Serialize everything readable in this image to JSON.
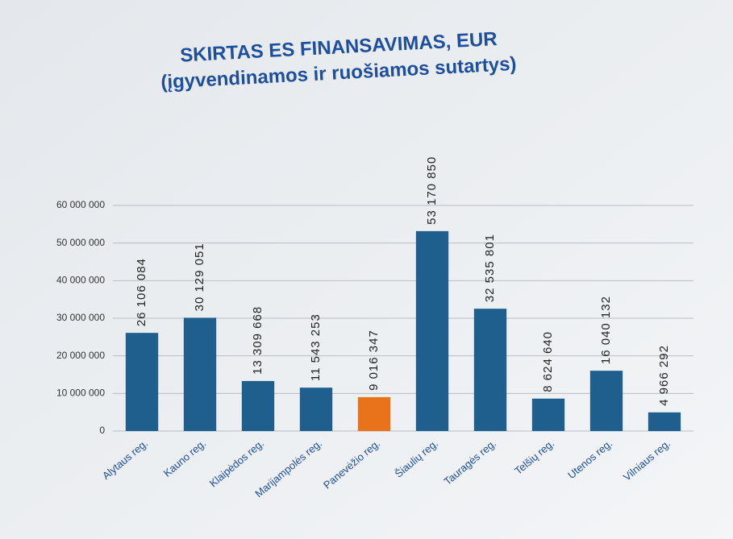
{
  "chart_data": {
    "type": "bar",
    "title": "SKIRTAS ES FINANSAVIMAS, EUR",
    "subtitle": "(įgyvendinamos ir ruošiamos sutartys)",
    "categories": [
      "Alytaus reg.",
      "Kauno reg.",
      "Klaipėdos reg.",
      "Marijampolės reg.",
      "Panevėžio reg.",
      "Šiaulių reg.",
      "Tauragės reg.",
      "Telšių reg.",
      "Utenos reg.",
      "Vilniaus reg."
    ],
    "values": [
      26106084,
      30129051,
      13309668,
      11543253,
      9016347,
      53170850,
      32535801,
      8624640,
      16040132,
      4966292
    ],
    "value_labels": [
      "26 106 084",
      "30 129 051",
      "13 309 668",
      "11 543 253",
      "9 016 347",
      "53 170 850",
      "32 535 801",
      "8 624 640",
      "16 040 132",
      "4 966 292"
    ],
    "colors": [
      "#1f5f8e",
      "#1f5f8e",
      "#1f5f8e",
      "#1f5f8e",
      "#e8731a",
      "#1f5f8e",
      "#1f5f8e",
      "#1f5f8e",
      "#1f5f8e",
      "#1f5f8e"
    ],
    "ylim": [
      0,
      60000000
    ],
    "yticks": [
      {
        "value": 0,
        "label": "0"
      },
      {
        "value": 10000000,
        "label": "10 000 000"
      },
      {
        "value": 20000000,
        "label": "20 000 000"
      },
      {
        "value": 30000000,
        "label": "30 000 000"
      },
      {
        "value": 40000000,
        "label": "40 000 000"
      },
      {
        "value": 50000000,
        "label": "50 000 000"
      },
      {
        "value": 60000000,
        "label": "60 000 000"
      }
    ],
    "grid": true
  }
}
